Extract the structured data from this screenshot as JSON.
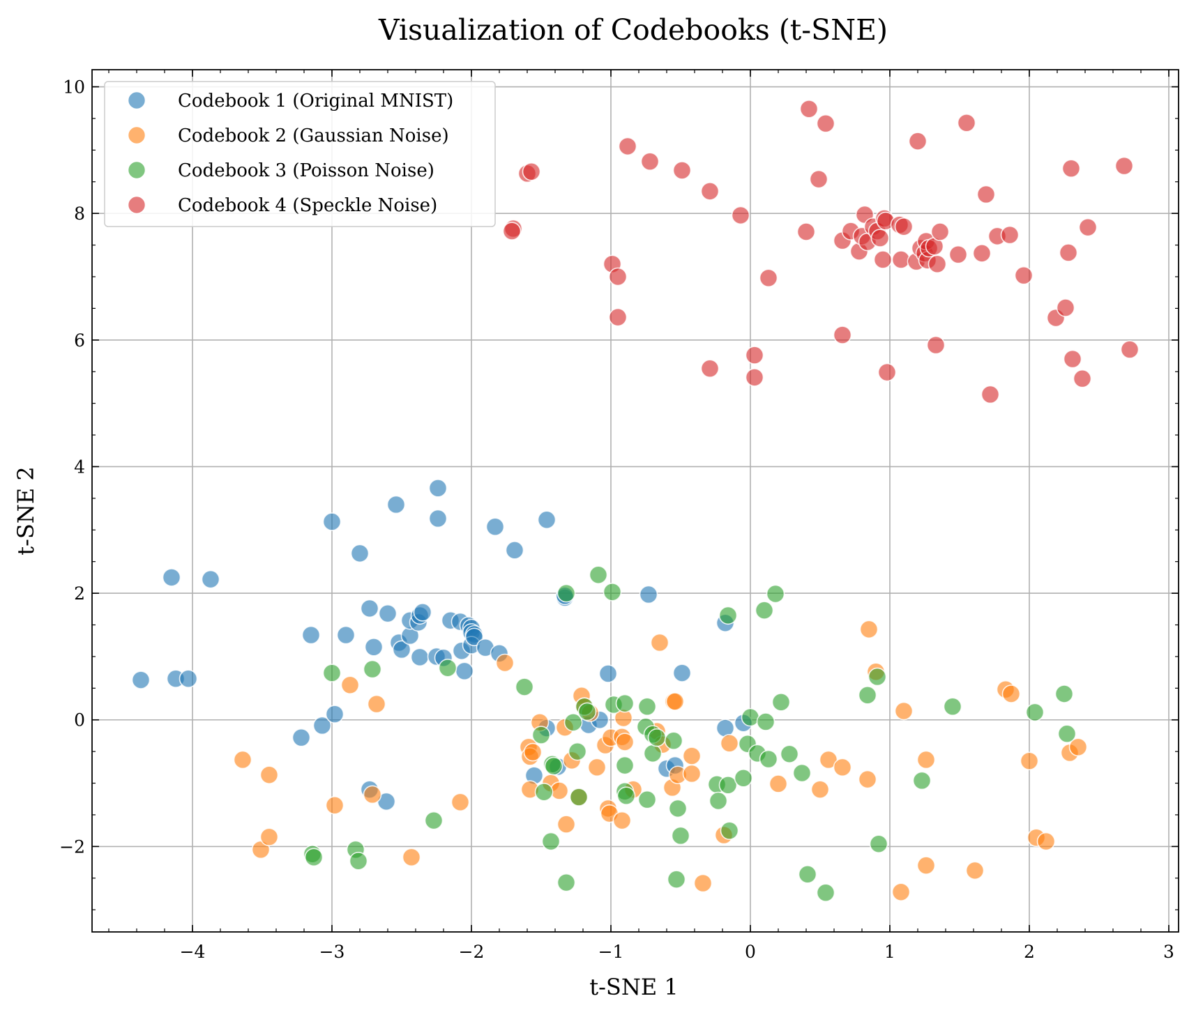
{
  "chart_data": {
    "type": "scatter",
    "title": "Visualization of Codebooks (t-SNE)",
    "xlabel": "t-SNE 1",
    "ylabel": "t-SNE 2",
    "xlim": [
      -4.72,
      3.07
    ],
    "ylim": [
      -3.35,
      10.27
    ],
    "x_ticks": [
      -4,
      -3,
      -2,
      -1,
      0,
      1,
      2,
      3
    ],
    "x_tick_labels": [
      "−4",
      "−3",
      "−2",
      "−1",
      "0",
      "1",
      "2",
      "3"
    ],
    "y_ticks": [
      -2,
      0,
      2,
      4,
      6,
      8,
      10
    ],
    "y_tick_labels": [
      "−2",
      "0",
      "2",
      "4",
      "6",
      "8",
      "10"
    ],
    "grid": true,
    "legend_position": "top-left",
    "series": [
      {
        "name": "Codebook 1 (Original MNIST)",
        "color": "#1f77b4",
        "points": [
          [
            -4.37,
            0.63
          ],
          [
            -4.12,
            0.65
          ],
          [
            -4.03,
            0.65
          ],
          [
            -4.15,
            2.25
          ],
          [
            -3.87,
            2.22
          ],
          [
            -3.22,
            -0.28
          ],
          [
            -3.07,
            -0.09
          ],
          [
            -2.98,
            0.09
          ],
          [
            -3.15,
            1.34
          ],
          [
            -2.9,
            1.34
          ],
          [
            -3.0,
            3.13
          ],
          [
            -2.8,
            2.63
          ],
          [
            -2.7,
            1.15
          ],
          [
            -2.73,
            1.76
          ],
          [
            -2.6,
            1.68
          ],
          [
            -2.52,
            1.22
          ],
          [
            -2.5,
            1.11
          ],
          [
            -2.44,
            1.33
          ],
          [
            -2.44,
            1.57
          ],
          [
            -2.38,
            1.54
          ],
          [
            -2.37,
            1.65
          ],
          [
            -2.35,
            1.7
          ],
          [
            -2.37,
            0.99
          ],
          [
            -2.25,
            1.0
          ],
          [
            -2.2,
            0.98
          ],
          [
            -2.54,
            3.4
          ],
          [
            -2.24,
            3.66
          ],
          [
            -2.24,
            3.18
          ],
          [
            -2.15,
            1.57
          ],
          [
            -2.08,
            1.55
          ],
          [
            -2.07,
            1.09
          ],
          [
            -2.05,
            0.77
          ],
          [
            -2.02,
            1.49
          ],
          [
            -2.0,
            1.45
          ],
          [
            -2.0,
            1.38
          ],
          [
            -1.98,
            1.35
          ],
          [
            -2.0,
            1.18
          ],
          [
            -1.98,
            1.31
          ],
          [
            -1.9,
            1.14
          ],
          [
            -1.8,
            1.05
          ],
          [
            -1.83,
            3.05
          ],
          [
            -1.69,
            2.68
          ],
          [
            -1.46,
            3.16
          ],
          [
            -1.33,
            1.93
          ],
          [
            -1.33,
            1.96
          ],
          [
            -1.16,
            -0.08
          ],
          [
            -1.08,
            0.0
          ],
          [
            -1.02,
            0.73
          ],
          [
            -0.73,
            1.98
          ],
          [
            -0.49,
            0.74
          ],
          [
            -0.18,
            1.53
          ],
          [
            -0.18,
            -0.13
          ],
          [
            -0.05,
            -0.05
          ],
          [
            -1.46,
            -0.13
          ],
          [
            -1.55,
            -0.88
          ],
          [
            -1.38,
            -0.74
          ],
          [
            -0.6,
            -0.77
          ],
          [
            -0.54,
            -0.72
          ],
          [
            -2.73,
            -1.1
          ],
          [
            -2.61,
            -1.29
          ]
        ]
      },
      {
        "name": "Codebook 2 (Gaussian Noise)",
        "color": "#ff7f0e",
        "points": [
          [
            -3.64,
            -0.63
          ],
          [
            -3.45,
            -0.87
          ],
          [
            -3.51,
            -2.05
          ],
          [
            -3.45,
            -1.85
          ],
          [
            -2.98,
            -1.35
          ],
          [
            -2.87,
            0.55
          ],
          [
            -2.68,
            0.25
          ],
          [
            -2.71,
            -1.18
          ],
          [
            -2.43,
            -2.17
          ],
          [
            -2.08,
            -1.3
          ],
          [
            -1.76,
            0.9
          ],
          [
            -1.59,
            -0.43
          ],
          [
            -1.58,
            -0.58
          ],
          [
            -1.56,
            -0.51
          ],
          [
            -1.58,
            -1.1
          ],
          [
            -1.51,
            -0.04
          ],
          [
            -1.43,
            -1.0
          ],
          [
            -1.37,
            -1.12
          ],
          [
            -1.33,
            -0.12
          ],
          [
            -1.28,
            -0.64
          ],
          [
            -1.32,
            -1.65
          ],
          [
            -1.21,
            0.38
          ],
          [
            -1.19,
            0.21
          ],
          [
            -1.15,
            0.11
          ],
          [
            -1.23,
            -1.22
          ],
          [
            -1.1,
            -0.75
          ],
          [
            -1.04,
            -0.4
          ],
          [
            -1.0,
            -0.28
          ],
          [
            -1.02,
            -1.4
          ],
          [
            -1.01,
            -1.48
          ],
          [
            -0.91,
            0.03
          ],
          [
            -0.92,
            -0.27
          ],
          [
            -0.9,
            -0.35
          ],
          [
            -0.92,
            -1.59
          ],
          [
            -0.84,
            -1.1
          ],
          [
            -0.65,
            1.22
          ],
          [
            -0.67,
            -0.18
          ],
          [
            -0.63,
            -0.39
          ],
          [
            -0.55,
            0.29
          ],
          [
            -0.54,
            0.29
          ],
          [
            -0.56,
            -1.07
          ],
          [
            -0.52,
            -0.87
          ],
          [
            -0.42,
            -0.57
          ],
          [
            -0.42,
            -0.85
          ],
          [
            -0.34,
            -2.58
          ],
          [
            -0.15,
            -0.37
          ],
          [
            -0.19,
            -1.82
          ],
          [
            0.2,
            -1.01
          ],
          [
            0.5,
            -1.1
          ],
          [
            0.56,
            -0.63
          ],
          [
            0.66,
            -0.75
          ],
          [
            0.84,
            -0.94
          ],
          [
            0.85,
            1.43
          ],
          [
            0.9,
            0.76
          ],
          [
            1.1,
            0.14
          ],
          [
            1.08,
            -2.72
          ],
          [
            1.26,
            -0.63
          ],
          [
            1.26,
            -2.3
          ],
          [
            1.61,
            -2.38
          ],
          [
            1.83,
            0.48
          ],
          [
            1.87,
            0.41
          ],
          [
            2.0,
            -0.65
          ],
          [
            2.05,
            -1.86
          ],
          [
            2.12,
            -1.92
          ],
          [
            2.29,
            -0.52
          ],
          [
            2.35,
            -0.43
          ]
        ]
      },
      {
        "name": "Codebook 3 (Poisson Noise)",
        "color": "#2ca02c",
        "points": [
          [
            -3.0,
            0.74
          ],
          [
            -2.71,
            0.8
          ],
          [
            -2.17,
            0.82
          ],
          [
            -1.62,
            0.52
          ],
          [
            -2.27,
            -1.59
          ],
          [
            -3.14,
            -2.12
          ],
          [
            -3.13,
            -2.17
          ],
          [
            -2.83,
            -2.05
          ],
          [
            -2.81,
            -2.23
          ],
          [
            -1.5,
            -0.24
          ],
          [
            -1.48,
            -1.14
          ],
          [
            -1.42,
            -0.7
          ],
          [
            -1.41,
            -0.73
          ],
          [
            -1.43,
            -1.92
          ],
          [
            -1.32,
            2.0
          ],
          [
            -1.27,
            -0.04
          ],
          [
            -1.24,
            -0.5
          ],
          [
            -1.23,
            -1.22
          ],
          [
            -1.19,
            0.21
          ],
          [
            -1.17,
            0.13
          ],
          [
            -1.32,
            -2.57
          ],
          [
            -1.09,
            2.29
          ],
          [
            -0.99,
            2.02
          ],
          [
            -0.98,
            0.24
          ],
          [
            -0.9,
            0.26
          ],
          [
            -0.9,
            -0.72
          ],
          [
            -0.9,
            -1.13
          ],
          [
            -0.89,
            -1.2
          ],
          [
            -0.74,
            0.21
          ],
          [
            -0.75,
            -0.11
          ],
          [
            -0.74,
            -1.26
          ],
          [
            -0.7,
            -0.23
          ],
          [
            -0.7,
            -0.53
          ],
          [
            -0.67,
            -0.28
          ],
          [
            -0.55,
            -0.33
          ],
          [
            -0.52,
            -1.4
          ],
          [
            -0.5,
            -1.83
          ],
          [
            -0.53,
            -2.52
          ],
          [
            -0.24,
            -1.02
          ],
          [
            -0.23,
            -1.28
          ],
          [
            -0.16,
            1.65
          ],
          [
            -0.16,
            -1.03
          ],
          [
            -0.15,
            -1.75
          ],
          [
            -0.05,
            -0.92
          ],
          [
            -0.02,
            -0.38
          ],
          [
            0.0,
            0.04
          ],
          [
            0.05,
            -0.53
          ],
          [
            0.1,
            1.73
          ],
          [
            0.11,
            -0.03
          ],
          [
            0.13,
            -0.62
          ],
          [
            0.18,
            1.99
          ],
          [
            0.22,
            0.28
          ],
          [
            0.28,
            -0.54
          ],
          [
            0.37,
            -0.84
          ],
          [
            0.41,
            -2.44
          ],
          [
            0.54,
            -2.73
          ],
          [
            0.84,
            0.39
          ],
          [
            0.91,
            0.68
          ],
          [
            0.92,
            -1.96
          ],
          [
            1.23,
            -0.96
          ],
          [
            1.45,
            0.21
          ],
          [
            2.04,
            0.12
          ],
          [
            2.25,
            0.41
          ],
          [
            2.27,
            -0.22
          ]
        ]
      },
      {
        "name": "Codebook 4 (Speckle Noise)",
        "color": "#d62728",
        "points": [
          [
            -1.6,
            8.63
          ],
          [
            -1.57,
            8.66
          ],
          [
            -1.7,
            7.76
          ],
          [
            -1.71,
            7.72
          ],
          [
            -0.88,
            9.06
          ],
          [
            -0.72,
            8.82
          ],
          [
            -0.49,
            8.68
          ],
          [
            -0.29,
            8.35
          ],
          [
            -0.07,
            7.97
          ],
          [
            -0.99,
            7.2
          ],
          [
            -0.95,
            7.0
          ],
          [
            -0.95,
            6.36
          ],
          [
            -0.29,
            5.55
          ],
          [
            0.03,
            5.76
          ],
          [
            0.03,
            5.41
          ],
          [
            0.13,
            6.98
          ],
          [
            0.42,
            9.65
          ],
          [
            0.54,
            9.42
          ],
          [
            0.49,
            8.54
          ],
          [
            0.4,
            7.71
          ],
          [
            0.66,
            7.57
          ],
          [
            0.72,
            7.72
          ],
          [
            0.78,
            7.4
          ],
          [
            0.8,
            7.64
          ],
          [
            0.82,
            7.98
          ],
          [
            0.84,
            7.55
          ],
          [
            0.88,
            7.79
          ],
          [
            0.91,
            7.72
          ],
          [
            0.93,
            7.61
          ],
          [
            0.95,
            7.27
          ],
          [
            0.96,
            7.92
          ],
          [
            0.97,
            7.88
          ],
          [
            0.66,
            6.08
          ],
          [
            0.98,
            5.49
          ],
          [
            1.07,
            7.82
          ],
          [
            1.1,
            7.79
          ],
          [
            1.08,
            7.27
          ],
          [
            1.2,
            9.14
          ],
          [
            1.19,
            7.24
          ],
          [
            1.22,
            7.45
          ],
          [
            1.25,
            7.37
          ],
          [
            1.26,
            7.56
          ],
          [
            1.27,
            7.26
          ],
          [
            1.28,
            7.45
          ],
          [
            1.32,
            7.48
          ],
          [
            1.34,
            7.2
          ],
          [
            1.36,
            7.71
          ],
          [
            1.33,
            5.92
          ],
          [
            1.49,
            7.35
          ],
          [
            1.55,
            9.43
          ],
          [
            1.66,
            7.37
          ],
          [
            1.69,
            8.3
          ],
          [
            1.72,
            5.14
          ],
          [
            1.77,
            7.64
          ],
          [
            1.86,
            7.66
          ],
          [
            1.96,
            7.02
          ],
          [
            2.19,
            6.35
          ],
          [
            2.26,
            6.51
          ],
          [
            2.28,
            7.38
          ],
          [
            2.3,
            8.71
          ],
          [
            2.31,
            5.7
          ],
          [
            2.38,
            5.39
          ],
          [
            2.42,
            7.78
          ],
          [
            2.68,
            8.75
          ],
          [
            2.72,
            5.85
          ]
        ]
      }
    ]
  }
}
